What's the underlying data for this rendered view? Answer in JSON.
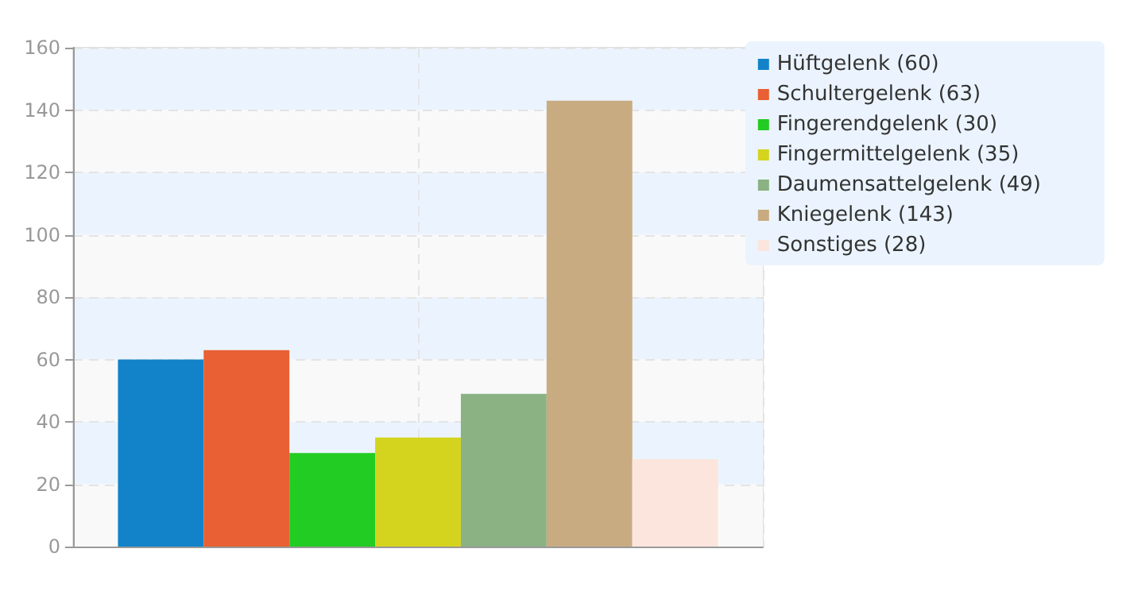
{
  "chart_data": {
    "type": "bar",
    "categories": [
      null
    ],
    "series": [
      {
        "name": "Hüftgelenk (60)",
        "color": "#1283c9",
        "values": [
          60
        ]
      },
      {
        "name": "Schultergelenk (63)",
        "color": "#e86033",
        "values": [
          63
        ]
      },
      {
        "name": "Fingerendgelenk (30)",
        "color": "#22cc22",
        "values": [
          30
        ]
      },
      {
        "name": "Fingermittelgelenk (35)",
        "color": "#d4d41e",
        "values": [
          35
        ]
      },
      {
        "name": "Daumensattelgelenk (49)",
        "color": "#8ab283",
        "values": [
          49
        ]
      },
      {
        "name": "Kniegelenk (143)",
        "color": "#c9ab82",
        "values": [
          143
        ]
      },
      {
        "name": "Sonstiges (28)",
        "color": "#fbe5dd",
        "values": [
          28
        ]
      }
    ],
    "ylim": [
      0,
      160
    ],
    "yticks": [
      0,
      20,
      40,
      60,
      80,
      100,
      120,
      140,
      160
    ],
    "grid": true,
    "legend": "top right"
  }
}
